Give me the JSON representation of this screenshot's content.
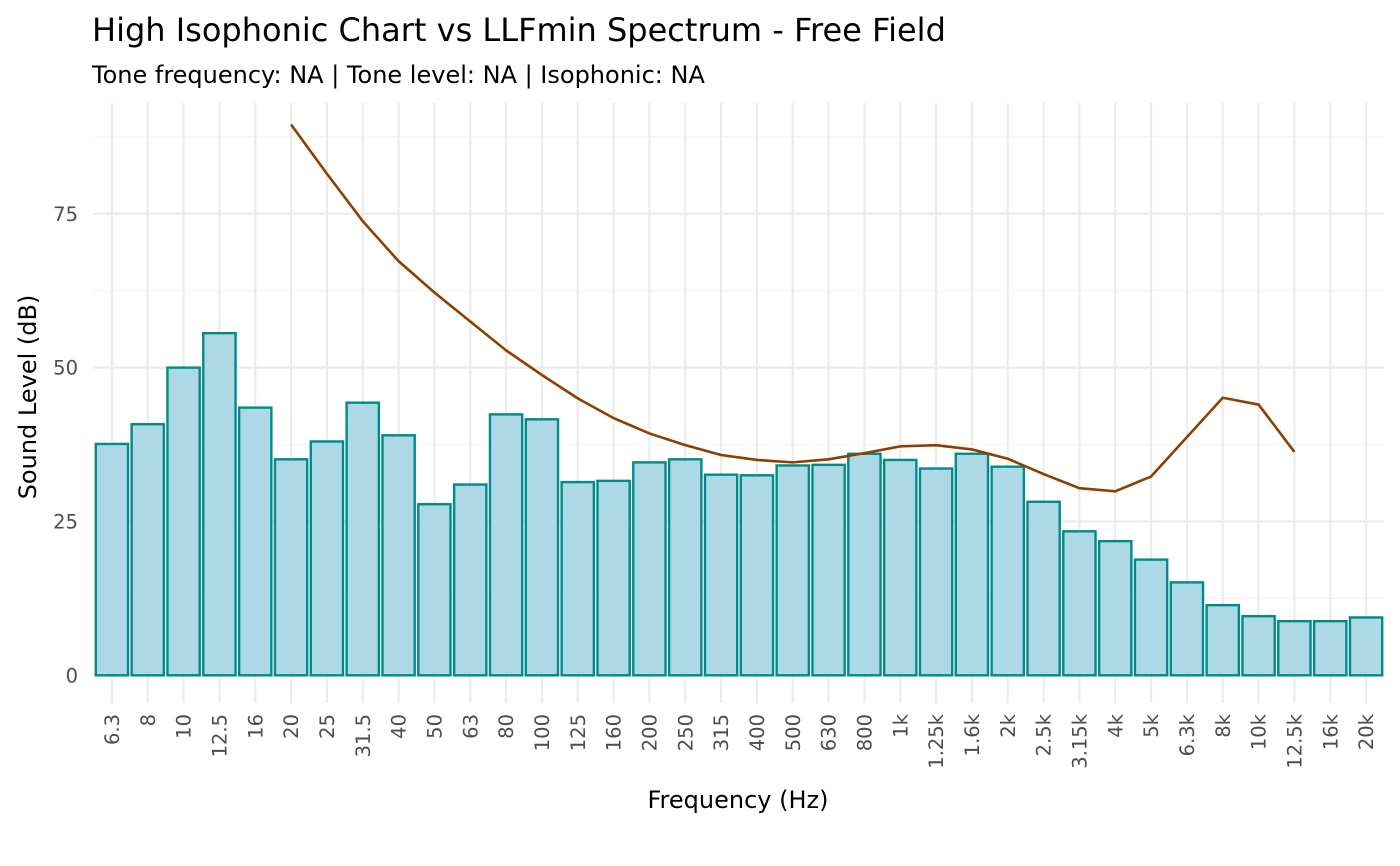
{
  "chart_data": {
    "type": "bar",
    "title": "High Isophonic Chart vs LLFmin Spectrum - Free Field",
    "subtitle": "Tone frequency: NA | Tone level: NA | Isophonic: NA",
    "xlabel": "Frequency (Hz)",
    "ylabel": "Sound Level (dB)",
    "ylim": [
      -4.5,
      93
    ],
    "yticks": [
      0,
      25,
      50,
      75
    ],
    "grid": true,
    "bar_fill": "#add8e6",
    "bar_outline": "#008b8b",
    "line_color": "#8b4000",
    "categories": [
      "6.3",
      "8",
      "10",
      "12.5",
      "16",
      "20",
      "25",
      "31.5",
      "40",
      "50",
      "63",
      "80",
      "100",
      "125",
      "160",
      "200",
      "250",
      "315",
      "400",
      "500",
      "630",
      "800",
      "1k",
      "1.25k",
      "1.6k",
      "2k",
      "2.5k",
      "3.15k",
      "4k",
      "5k",
      "6.3k",
      "8k",
      "10k",
      "12.5k",
      "16k",
      "20k"
    ],
    "series": [
      {
        "type": "bar",
        "values": [
          37.6,
          40.8,
          50,
          55.6,
          43.5,
          35.1,
          38,
          44.3,
          39,
          27.8,
          31,
          42.4,
          41.6,
          31.4,
          31.6,
          34.6,
          35.1,
          32.6,
          32.5,
          34.1,
          34.2,
          36,
          35,
          33.6,
          36,
          33.9,
          28.2,
          23.4,
          21.8,
          18.8,
          15.1,
          11.4,
          9.6,
          8.8,
          8.8,
          9.4
        ]
      },
      {
        "type": "line",
        "values": [
          null,
          null,
          null,
          null,
          null,
          89.5,
          81.5,
          73.8,
          67.3,
          62.2,
          57.5,
          52.8,
          48.8,
          45,
          41.8,
          39.3,
          37.4,
          35.8,
          35,
          34.6,
          35.1,
          36.1,
          37.2,
          37.4,
          36.7,
          35.2,
          32.7,
          30.4,
          29.9,
          32.3,
          38.7,
          45.1,
          44,
          36.3,
          null,
          null
        ]
      }
    ]
  }
}
